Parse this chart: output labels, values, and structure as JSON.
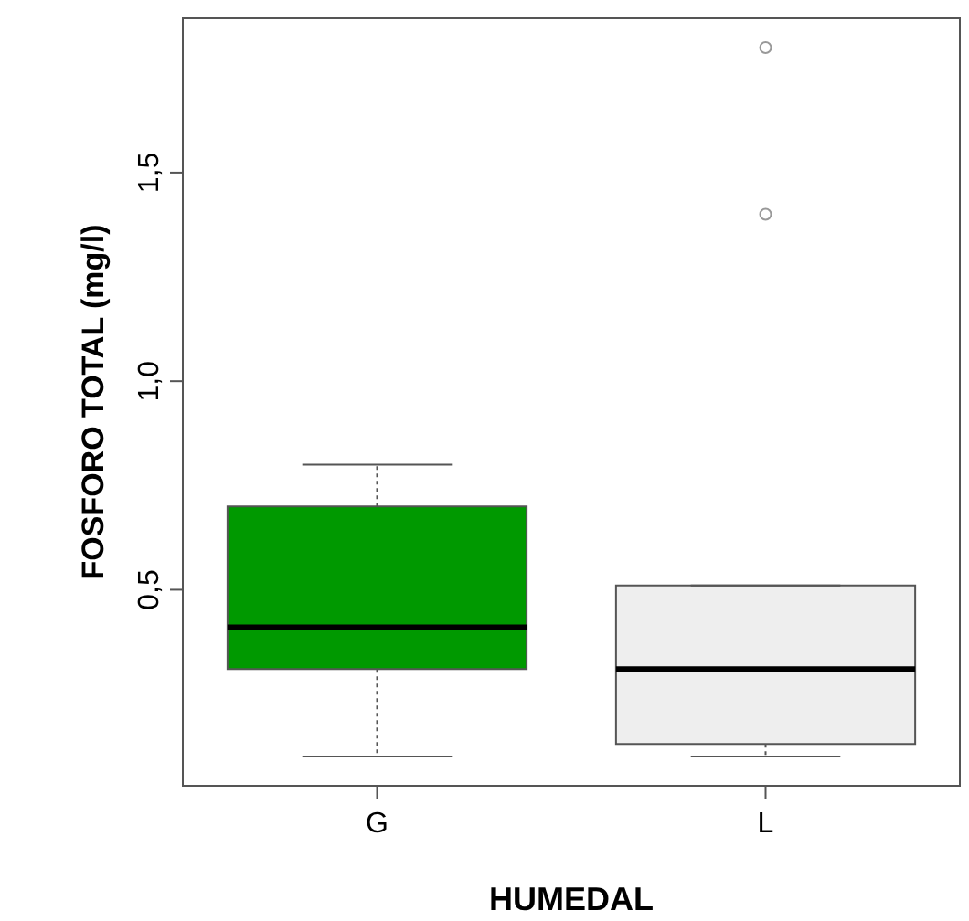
{
  "chart_data": {
    "type": "box",
    "xlabel": "HUMEDAL",
    "ylabel": "FOSFORO TOTAL (mg/l)",
    "categories": [
      "G",
      "L"
    ],
    "colors": [
      "#009900",
      "#eeeeee"
    ],
    "boxes": [
      {
        "low": 0.1,
        "q1": 0.31,
        "median": 0.41,
        "q3": 0.7,
        "high": 0.8
      },
      {
        "low": 0.1,
        "q1": 0.13,
        "median": 0.31,
        "q3": 0.51,
        "high": 0.51,
        "outliers": [
          1.4,
          1.8
        ]
      }
    ],
    "ylim": [
      0.03,
      1.87
    ],
    "yticks": [
      {
        "value": 0.5,
        "label": "0,5"
      },
      {
        "value": 1.0,
        "label": "1,0"
      },
      {
        "value": 1.5,
        "label": "1,5"
      }
    ],
    "grid": false,
    "legend": false
  }
}
